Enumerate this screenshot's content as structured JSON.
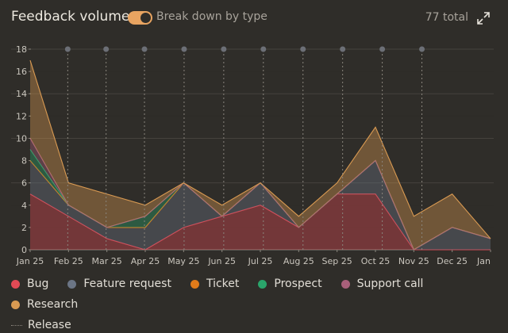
{
  "header": {
    "title": "Feedback volume",
    "toggle_label": "Break down by type",
    "toggle_on": true,
    "total": "77 total",
    "expand_icon": "expand-icon"
  },
  "colors": {
    "background": "#2f2d29",
    "accent": "#e8a461",
    "grid": "#4a4741",
    "release_line": "#8a857d"
  },
  "chart_data": {
    "type": "area",
    "stacked": true,
    "title": "Feedback volume",
    "xlabel": "",
    "ylabel": "",
    "categories": [
      "Jan 25",
      "Feb 25",
      "Mar 25",
      "Apr 25",
      "May 25",
      "Jun 25",
      "Jul 25",
      "Aug 25",
      "Sep 25",
      "Oct 25",
      "Nov 25",
      "Dec 25",
      "Jan"
    ],
    "ylim": [
      0,
      18
    ],
    "yticks": [
      "0",
      "2",
      "4",
      "6",
      "8",
      "10",
      "12",
      "14",
      "16",
      "18"
    ],
    "grid": true,
    "legend_placement": "bottom",
    "series": [
      {
        "name": "Bug",
        "color": "#e24a55",
        "values": [
          5,
          3,
          1,
          0,
          2,
          3,
          4,
          2,
          5,
          5,
          0,
          0,
          0
        ]
      },
      {
        "name": "Feature request",
        "color": "#6b7585",
        "values": [
          3,
          1,
          1,
          2,
          4,
          0,
          2,
          0,
          0,
          3,
          0,
          2,
          1
        ]
      },
      {
        "name": "Ticket",
        "color": "#e07b1a",
        "values": [
          0,
          0,
          0,
          0,
          0,
          0,
          0,
          0,
          0,
          0,
          0,
          0,
          0
        ]
      },
      {
        "name": "Prospect",
        "color": "#2aa56b",
        "values": [
          1,
          0,
          0,
          1,
          0,
          0,
          0,
          0,
          0,
          0,
          0,
          0,
          0
        ]
      },
      {
        "name": "Support call",
        "color": "#a8607a",
        "values": [
          1,
          0,
          0,
          0,
          0,
          0,
          0,
          0,
          0,
          0,
          0,
          0,
          0
        ]
      },
      {
        "name": "Research",
        "color": "#d99a52",
        "values": [
          7,
          2,
          3,
          1,
          0,
          1,
          0,
          1,
          1,
          3,
          3,
          3,
          0
        ]
      }
    ],
    "releases": [
      "Feb 25",
      "Mar 25",
      "Apr 25",
      "May 25",
      "Jun 25",
      "Jul 25",
      "Aug 25",
      "Sep 25",
      "Oct 25",
      "Nov 25"
    ],
    "release_x": [
      1.0,
      2.0,
      3.0,
      4.0,
      5.0,
      6.0,
      7.0,
      8.0,
      9.0,
      10.0
    ],
    "release_label": "Release"
  }
}
